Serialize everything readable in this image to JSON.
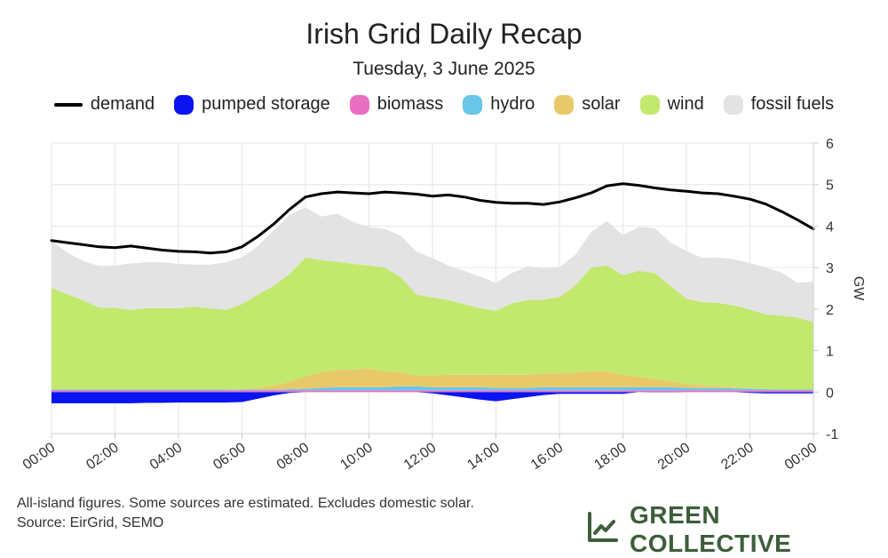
{
  "chart_data": {
    "type": "area",
    "title": "Irish Grid Daily Recap",
    "subtitle": "Tuesday, 3 June 2025",
    "ylabel": "GW",
    "xlabel": "",
    "ylim": [
      -1,
      6
    ],
    "yticks": [
      "-1",
      "0",
      "1",
      "2",
      "3",
      "4",
      "5",
      "6"
    ],
    "x_tick_labels": [
      "00:00",
      "02:00",
      "04:00",
      "06:00",
      "08:00",
      "10:00",
      "12:00",
      "14:00",
      "16:00",
      "18:00",
      "20:00",
      "22:00",
      "00:00"
    ],
    "grid": true,
    "legend_position": "top",
    "x_hours": [
      0,
      0.5,
      1,
      1.5,
      2,
      2.5,
      3,
      3.5,
      4,
      4.5,
      5,
      5.5,
      6,
      6.5,
      7,
      7.5,
      8,
      8.5,
      9,
      9.5,
      10,
      10.5,
      11,
      11.5,
      12,
      12.5,
      13,
      13.5,
      14,
      14.5,
      15,
      15.5,
      16,
      16.5,
      17,
      17.5,
      18,
      18.5,
      19,
      19.5,
      20,
      20.5,
      21,
      21.5,
      22,
      22.5,
      23,
      23.5,
      24
    ],
    "series": [
      {
        "name": "demand",
        "kind": "line",
        "color": "#000000",
        "values": [
          3.65,
          3.6,
          3.55,
          3.5,
          3.48,
          3.52,
          3.47,
          3.42,
          3.39,
          3.38,
          3.35,
          3.38,
          3.5,
          3.75,
          4.05,
          4.4,
          4.7,
          4.78,
          4.82,
          4.8,
          4.78,
          4.82,
          4.8,
          4.77,
          4.72,
          4.75,
          4.7,
          4.62,
          4.57,
          4.55,
          4.55,
          4.52,
          4.58,
          4.68,
          4.8,
          4.97,
          5.02,
          4.98,
          4.92,
          4.87,
          4.84,
          4.8,
          4.78,
          4.72,
          4.65,
          4.53,
          4.35,
          4.15,
          3.93
        ]
      },
      {
        "name": "pumped storage",
        "kind": "stack",
        "color": "#0a14f0",
        "values": [
          -0.27,
          -0.27,
          -0.27,
          -0.27,
          -0.27,
          -0.27,
          -0.26,
          -0.26,
          -0.25,
          -0.25,
          -0.25,
          -0.25,
          -0.24,
          -0.16,
          -0.08,
          -0.02,
          0,
          0,
          0,
          0,
          0,
          0,
          0,
          0,
          -0.03,
          -0.08,
          -0.13,
          -0.18,
          -0.22,
          -0.17,
          -0.12,
          -0.07,
          -0.04,
          -0.04,
          -0.04,
          -0.04,
          -0.04,
          0,
          0.01,
          0.01,
          0,
          0,
          0,
          0,
          -0.02,
          -0.03,
          -0.03,
          -0.03,
          -0.03
        ]
      },
      {
        "name": "biomass",
        "kind": "stack",
        "color": "#ea6fc2",
        "values": [
          0.04,
          0.04,
          0.04,
          0.04,
          0.04,
          0.04,
          0.04,
          0.04,
          0.04,
          0.04,
          0.04,
          0.04,
          0.04,
          0.04,
          0.04,
          0.04,
          0.04,
          0.04,
          0.04,
          0.04,
          0.04,
          0.04,
          0.04,
          0.04,
          0.04,
          0.04,
          0.04,
          0.04,
          0.04,
          0.04,
          0.04,
          0.04,
          0.04,
          0.04,
          0.04,
          0.04,
          0.04,
          0.04,
          0.04,
          0.04,
          0.04,
          0.04,
          0.04,
          0.04,
          0.04,
          0.04,
          0.04,
          0.04,
          0.04
        ]
      },
      {
        "name": "hydro",
        "kind": "stack",
        "color": "#67c6ea",
        "values": [
          0.02,
          0.02,
          0.02,
          0.02,
          0.02,
          0.02,
          0.02,
          0.02,
          0.02,
          0.02,
          0.02,
          0.02,
          0.02,
          0.02,
          0.02,
          0.03,
          0.04,
          0.06,
          0.08,
          0.08,
          0.08,
          0.08,
          0.1,
          0.1,
          0.08,
          0.08,
          0.08,
          0.08,
          0.06,
          0.06,
          0.06,
          0.08,
          0.08,
          0.08,
          0.08,
          0.08,
          0.08,
          0.08,
          0.08,
          0.08,
          0.06,
          0.06,
          0.06,
          0.05,
          0.04,
          0.03,
          0.02,
          0.02,
          0.02
        ]
      },
      {
        "name": "solar",
        "kind": "stack",
        "color": "#e8c96a",
        "values": [
          0,
          0,
          0,
          0,
          0,
          0,
          0,
          0,
          0,
          0,
          0,
          0,
          0.01,
          0.04,
          0.1,
          0.18,
          0.3,
          0.38,
          0.42,
          0.42,
          0.45,
          0.38,
          0.33,
          0.26,
          0.28,
          0.3,
          0.3,
          0.3,
          0.32,
          0.32,
          0.32,
          0.33,
          0.33,
          0.35,
          0.38,
          0.38,
          0.3,
          0.25,
          0.2,
          0.14,
          0.1,
          0.07,
          0.05,
          0.03,
          0.01,
          0,
          0,
          0,
          0
        ]
      },
      {
        "name": "wind",
        "kind": "stack",
        "color": "#c2e96e",
        "values": [
          2.45,
          2.3,
          2.15,
          1.98,
          1.97,
          1.92,
          1.96,
          1.96,
          1.96,
          2.0,
          1.96,
          1.92,
          2.05,
          2.25,
          2.4,
          2.6,
          2.86,
          2.7,
          2.6,
          2.55,
          2.48,
          2.5,
          2.3,
          1.95,
          1.88,
          1.8,
          1.7,
          1.6,
          1.54,
          1.72,
          1.8,
          1.78,
          1.84,
          2.1,
          2.5,
          2.55,
          2.4,
          2.55,
          2.55,
          2.3,
          2.05,
          2.0,
          2.0,
          1.97,
          1.9,
          1.8,
          1.78,
          1.74,
          1.62
        ]
      },
      {
        "name": "fossil fuels",
        "kind": "stack",
        "color": "#e3e3e3",
        "values": [
          1.13,
          1.0,
          0.95,
          1.0,
          1.02,
          1.12,
          1.11,
          1.11,
          1.07,
          1.01,
          1.05,
          1.15,
          1.13,
          1.17,
          1.34,
          1.42,
          1.21,
          1.05,
          1.16,
          1.01,
          0.92,
          0.93,
          1.0,
          1.03,
          0.95,
          0.83,
          0.8,
          0.76,
          0.67,
          0.73,
          0.81,
          0.75,
          0.72,
          0.74,
          0.86,
          1.07,
          0.96,
          1.06,
          1.08,
          1.04,
          1.15,
          1.06,
          1.09,
          1.11,
          1.12,
          1.13,
          1.04,
          0.83,
          0.98
        ]
      }
    ]
  },
  "legend": [
    {
      "label": "demand",
      "kind": "line",
      "color": "#000000"
    },
    {
      "label": "pumped storage",
      "kind": "box",
      "color": "#0a14f0"
    },
    {
      "label": "biomass",
      "kind": "box",
      "color": "#ea6fc2"
    },
    {
      "label": "hydro",
      "kind": "box",
      "color": "#67c6ea"
    },
    {
      "label": "solar",
      "kind": "box",
      "color": "#e8c96a"
    },
    {
      "label": "wind",
      "kind": "box",
      "color": "#c2e96e"
    },
    {
      "label": "fossil fuels",
      "kind": "box",
      "color": "#e3e3e3"
    }
  ],
  "footnote": {
    "line1": "All-island figures. Some sources are estimated. Excludes domestic solar.",
    "line2": "Source: EirGrid, SEMO"
  },
  "brand": {
    "name": "GREEN COLLECTIVE",
    "color": "#3d5e3a",
    "icon": "chart-trend-icon"
  }
}
